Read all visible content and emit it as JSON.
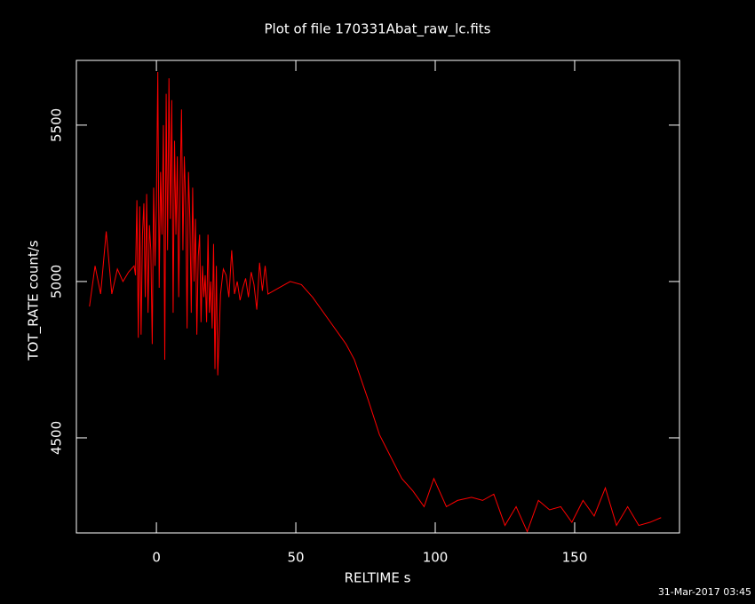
{
  "chart_data": {
    "type": "line",
    "title": "Plot of file 170331Abat_raw_lc.fits",
    "xlabel": "RELTIME  s",
    "ylabel": "TOT_RATE  count/s",
    "timestamp": "31-Mar-2017 03:45",
    "color": "#ff0000",
    "xlim": [
      -28.7,
      187.6
    ],
    "ylim": [
      4196,
      5707
    ],
    "xticks": [
      0,
      50,
      100,
      150
    ],
    "yticks": [
      4500,
      5000,
      5500
    ],
    "x": [
      -24,
      -22,
      -20,
      -18,
      -16,
      -14,
      -12,
      -10,
      -8,
      -7.5,
      -7,
      -6.5,
      -6,
      -5.5,
      -5,
      -4.5,
      -4,
      -3.5,
      -3,
      -2.5,
      -2,
      -1.5,
      -1,
      -0.5,
      0,
      0.5,
      1,
      1.5,
      2,
      2.5,
      3,
      3.5,
      4,
      4.5,
      5,
      5.5,
      6,
      6.5,
      7,
      7.5,
      8,
      8.5,
      9,
      9.5,
      10,
      10.5,
      11,
      11.5,
      12,
      12.5,
      13,
      13.5,
      14,
      14.5,
      15,
      15.5,
      16,
      16.5,
      17,
      17.5,
      18,
      18.5,
      19,
      19.5,
      20,
      20.5,
      21,
      21.5,
      22,
      23,
      24,
      25,
      26,
      27,
      28,
      29,
      30,
      31,
      32,
      33,
      34,
      35,
      36,
      37,
      38,
      39,
      40,
      44,
      48,
      52,
      56,
      60,
      64,
      68,
      71,
      76,
      80,
      84,
      88,
      92,
      96,
      99.5,
      104,
      108,
      113,
      117,
      121,
      125,
      129,
      133,
      137,
      141,
      145,
      149,
      153,
      157,
      161,
      165,
      169,
      173,
      177,
      181
    ],
    "values": [
      4920,
      5050,
      4960,
      5160,
      4960,
      5040,
      5000,
      5030,
      5050,
      5020,
      5260,
      4820,
      5240,
      4830,
      5150,
      5250,
      4950,
      5280,
      4900,
      5180,
      5100,
      4800,
      5300,
      5050,
      5250,
      5670,
      4980,
      5350,
      5150,
      5500,
      4750,
      5600,
      5100,
      5650,
      5200,
      5580,
      4900,
      5450,
      5150,
      5400,
      4950,
      5300,
      5550,
      5100,
      5400,
      5250,
      4850,
      5350,
      5200,
      4900,
      5300,
      5000,
      5200,
      4830,
      5080,
      5150,
      4870,
      5050,
      4950,
      5020,
      4870,
      5150,
      4900,
      5000,
      4850,
      5120,
      4720,
      5050,
      4700,
      4960,
      5040,
      5020,
      4950,
      5100,
      4960,
      5000,
      4940,
      4980,
      5010,
      4950,
      5030,
      4990,
      4910,
      5060,
      4970,
      5050,
      4960,
      4980,
      5000,
      4990,
      4950,
      4900,
      4850,
      4800,
      4750,
      4620,
      4510,
      4440,
      4370,
      4330,
      4280,
      4370,
      4280,
      4300,
      4310,
      4300,
      4320,
      4220,
      4280,
      4200,
      4300,
      4270,
      4280,
      4230,
      4300,
      4250,
      4340,
      4220,
      4280,
      4220,
      4230,
      4245
    ]
  }
}
